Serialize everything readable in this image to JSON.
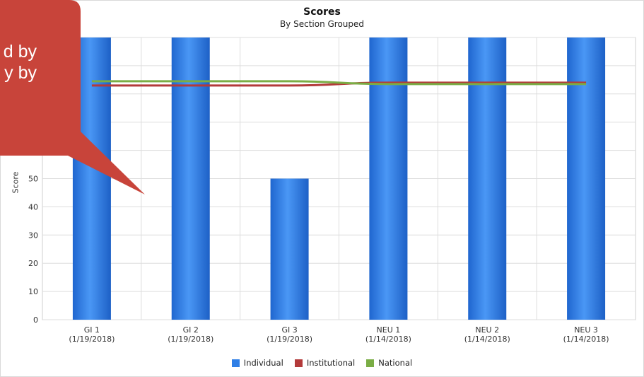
{
  "chart_data": {
    "type": "bar",
    "title": "Scores",
    "subtitle": "By Section Grouped",
    "ylabel": "Score",
    "xlabel": "",
    "ylim": [
      0,
      100
    ],
    "yticks": [
      0,
      10,
      20,
      30,
      40,
      50
    ],
    "categories": [
      "GI 1\n(1/19/2018)",
      "GI 2\n(1/19/2018)",
      "GI 3\n(1/19/2018)",
      "NEU 1\n(1/14/2018)",
      "NEU 2\n(1/14/2018)",
      "NEU 3\n(1/14/2018)"
    ],
    "series": [
      {
        "name": "Individual",
        "type": "bar",
        "color": "#2f7fe6",
        "values": [
          100,
          100,
          50,
          100,
          100,
          100
        ]
      },
      {
        "name": "Institutional",
        "type": "line",
        "color": "#b33a3a",
        "values": [
          83,
          83,
          83,
          84,
          84,
          84
        ]
      },
      {
        "name": "National",
        "type": "line",
        "color": "#7aad45",
        "values": [
          84.5,
          84.5,
          84.5,
          83.5,
          83.5,
          83.5
        ]
      }
    ],
    "grid": true,
    "legend_position": "bottom"
  },
  "callout": {
    "color": "#c8443a",
    "lines": [
      "d by",
      "y by"
    ]
  }
}
